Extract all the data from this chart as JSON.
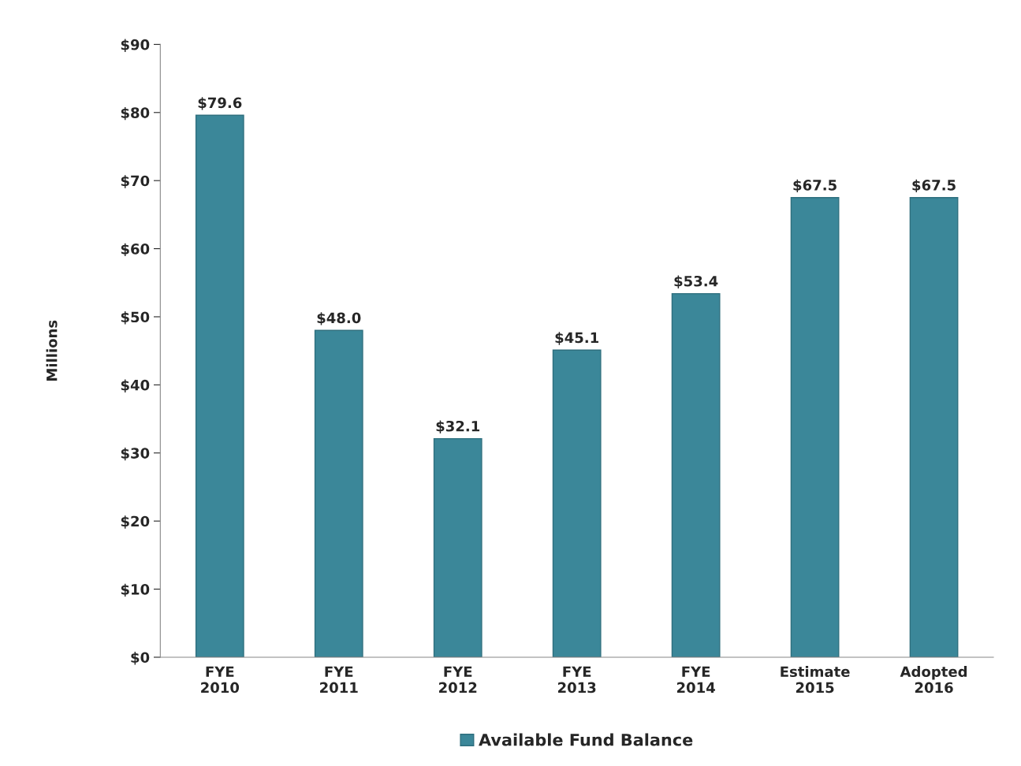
{
  "chart_data": {
    "type": "bar",
    "ylabel": "Millions",
    "categories": [
      "FYE\n2010",
      "FYE\n2011",
      "FYE\n2012",
      "FYE\n2013",
      "FYE\n2014",
      "Estimate\n2015",
      "Adopted\n2016"
    ],
    "series": [
      {
        "name": "Available Fund Balance",
        "color": "#3b8799",
        "values": [
          79.6,
          48.0,
          32.1,
          45.1,
          53.4,
          67.5,
          67.5
        ],
        "value_labels": [
          "$79.6",
          "$48.0",
          "$32.1",
          "$45.1",
          "$53.4",
          "$67.5",
          "$67.5"
        ]
      }
    ],
    "ylim": [
      0,
      90
    ],
    "yticks": [
      {
        "value": 0,
        "label": "$0"
      },
      {
        "value": 10,
        "label": "$10"
      },
      {
        "value": 20,
        "label": "$20"
      },
      {
        "value": 30,
        "label": "$30"
      },
      {
        "value": 40,
        "label": "$40"
      },
      {
        "value": 50,
        "label": "$50"
      },
      {
        "value": 60,
        "label": "$60"
      },
      {
        "value": 70,
        "label": "$70"
      },
      {
        "value": 80,
        "label": "$80"
      },
      {
        "value": 90,
        "label": "$90"
      }
    ],
    "grid": false,
    "legend": "bottom"
  }
}
